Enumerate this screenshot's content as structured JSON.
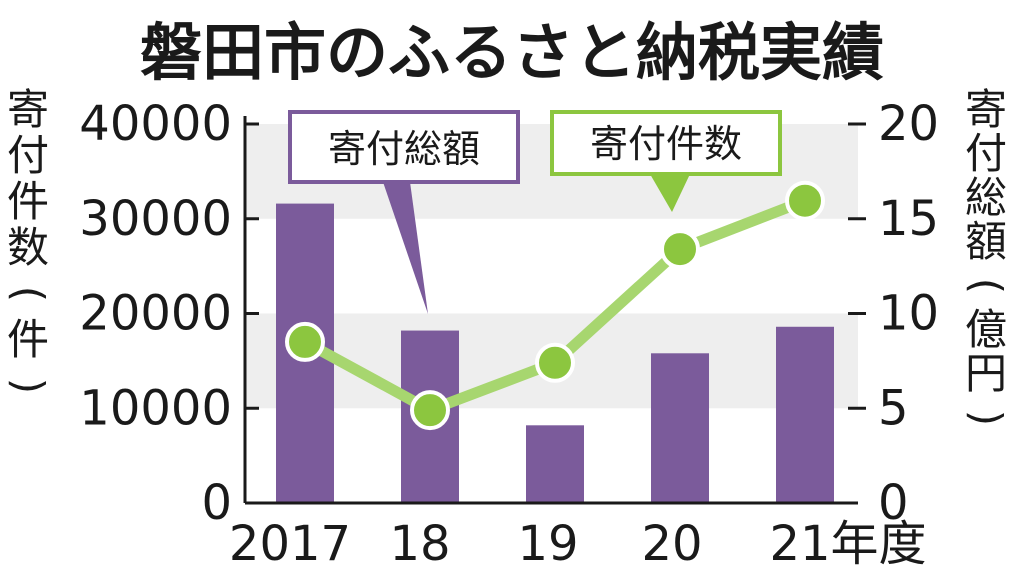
{
  "chart_data": {
    "type": "bar+line",
    "title": "磐田市のふるさと納税実績",
    "categories": [
      "2017",
      "18",
      "19",
      "20",
      "21年度"
    ],
    "left_axis": {
      "label_chars": [
        "寄",
        "付",
        "件",
        "数",
        "(",
        "件",
        ")"
      ],
      "ticks": [
        "40000",
        "30000",
        "20000",
        "10000",
        "0"
      ],
      "range": [
        0,
        40000
      ]
    },
    "right_axis": {
      "label_chars": [
        "寄",
        "付",
        "総",
        "額",
        "(",
        "億",
        "円",
        ")"
      ],
      "ticks": [
        "20",
        "15",
        "10",
        "5",
        "0"
      ],
      "range": [
        0,
        20
      ]
    },
    "series": [
      {
        "name": "寄付総額",
        "type": "bar",
        "axis": "right",
        "color": "#7b5b9b",
        "values": [
          15.8,
          9.1,
          4.1,
          7.9,
          9.3
        ]
      },
      {
        "name": "寄付件数",
        "type": "line",
        "axis": "left",
        "color": "#8cc63f",
        "values": [
          17000,
          9800,
          14800,
          26800,
          31900
        ]
      }
    ],
    "grid": "alternating horizontal bands",
    "band_color": "#eeeeee"
  }
}
